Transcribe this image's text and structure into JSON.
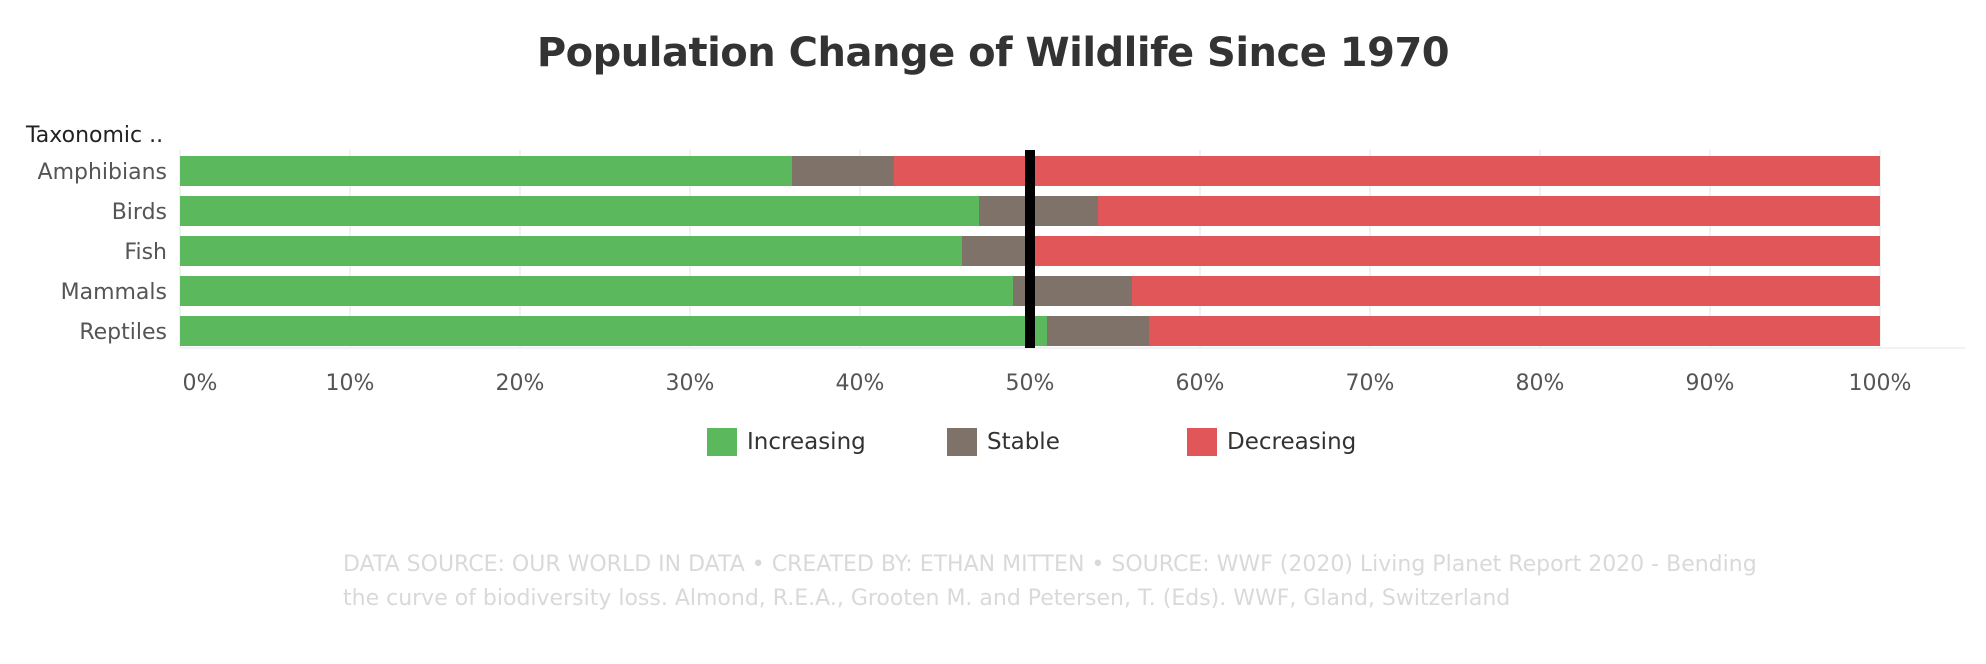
{
  "chart_data": {
    "type": "bar",
    "orientation": "horizontal",
    "stacked": true,
    "title": "Population Change of Wildlife Since 1970",
    "row_header": "Taxonomic ..",
    "categories": [
      "Amphibians",
      "Birds",
      "Fish",
      "Mammals",
      "Reptiles"
    ],
    "series": [
      {
        "name": "Increasing",
        "color": "#5cb85c",
        "values": [
          36,
          47,
          46,
          49,
          51
        ]
      },
      {
        "name": "Stable",
        "color": "#7f7369",
        "values": [
          6,
          7,
          4,
          7,
          6
        ]
      },
      {
        "name": "Decreasing",
        "color": "#e15759",
        "values": [
          58,
          46,
          50,
          44,
          43
        ]
      }
    ],
    "xlim": [
      0,
      100
    ],
    "x_ticks": [
      "0%",
      "10%",
      "20%",
      "30%",
      "40%",
      "50%",
      "60%",
      "70%",
      "80%",
      "90%",
      "100%"
    ],
    "reference_line": 50,
    "grid": "vertical",
    "legend_position": "bottom"
  },
  "footer": {
    "line1": "DATA SOURCE: OUR WORLD IN DATA • CREATED BY: ETHAN MITTEN • SOURCE: WWF (2020) Living Planet Report 2020 - Bending",
    "line2": "the curve of biodiversity loss. Almond, R.E.A., Grooten M. and Petersen, T. (Eds). WWF, Gland, Switzerland"
  }
}
